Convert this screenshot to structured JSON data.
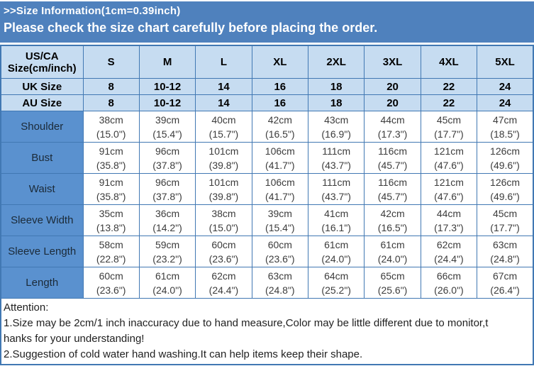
{
  "topbar": {
    "size_info_title": ">>Size Information(1cm=0.39inch)",
    "banner_text": "Please check the size chart carefully before placing the order."
  },
  "table": {
    "corner_header_line1": "US/CA",
    "corner_header_line2": "Size(cm/inch)",
    "size_headers": [
      "S",
      "M",
      "L",
      "XL",
      "2XL",
      "3XL",
      "4XL",
      "5XL"
    ],
    "size_rows": [
      {
        "label": "UK Size",
        "values": [
          "8",
          "10-12",
          "14",
          "16",
          "18",
          "20",
          "22",
          "24"
        ]
      },
      {
        "label": "AU Size",
        "values": [
          "8",
          "10-12",
          "14",
          "16",
          "18",
          "20",
          "22",
          "24"
        ]
      }
    ],
    "measure_rows": [
      {
        "label": "Shoulder",
        "cm": [
          "38cm",
          "39cm",
          "40cm",
          "42cm",
          "43cm",
          "44cm",
          "45cm",
          "47cm"
        ],
        "inch": [
          "(15.0\")",
          "(15.4\")",
          "(15.7\")",
          "(16.5\")",
          "(16.9\")",
          "(17.3\")",
          "(17.7\")",
          "(18.5\")"
        ]
      },
      {
        "label": "Bust",
        "cm": [
          "91cm",
          "96cm",
          "101cm",
          "106cm",
          "111cm",
          "116cm",
          "121cm",
          "126cm"
        ],
        "inch": [
          "(35.8\")",
          "(37.8\")",
          "(39.8\")",
          "(41.7\")",
          "(43.7\")",
          "(45.7\")",
          "(47.6\")",
          "(49.6\")"
        ]
      },
      {
        "label": "Waist",
        "cm": [
          "91cm",
          "96cm",
          "101cm",
          "106cm",
          "111cm",
          "116cm",
          "121cm",
          "126cm"
        ],
        "inch": [
          "(35.8\")",
          "(37.8\")",
          "(39.8\")",
          "(41.7\")",
          "(43.7\")",
          "(45.7\")",
          "(47.6\")",
          "(49.6\")"
        ]
      },
      {
        "label": "Sleeve Width",
        "cm": [
          "35cm",
          "36cm",
          "38cm",
          "39cm",
          "41cm",
          "42cm",
          "44cm",
          "45cm"
        ],
        "inch": [
          "(13.8\")",
          "(14.2\")",
          "(15.0\")",
          "(15.4\")",
          "(16.1\")",
          "(16.5\")",
          "(17.3\")",
          "(17.7\")"
        ]
      },
      {
        "label": "Sleeve Length",
        "cm": [
          "58cm",
          "59cm",
          "60cm",
          "60cm",
          "61cm",
          "61cm",
          "62cm",
          "63cm"
        ],
        "inch": [
          "(22.8\")",
          "(23.2\")",
          "(23.6\")",
          "(23.6\")",
          "(24.0\")",
          "(24.0\")",
          "(24.4\")",
          "(24.8\")"
        ]
      },
      {
        "label": "Length",
        "cm": [
          "60cm",
          "61cm",
          "62cm",
          "63cm",
          "64cm",
          "65cm",
          "66cm",
          "67cm"
        ],
        "inch": [
          "(23.6\")",
          "(24.0\")",
          "(24.4\")",
          "(24.8\")",
          "(25.2\")",
          "(25.6\")",
          "(26.0\")",
          "(26.4\")"
        ]
      }
    ]
  },
  "attention": {
    "title": "Attention:",
    "lines": [
      "1.Size may be 2cm/1 inch inaccuracy due to hand measure,Color may be little different due to monitor,t",
      "hanks for your understanding!",
      "2.Suggestion of cold water hand washing.It can help items keep their shape."
    ]
  },
  "colors": {
    "banner_blue": "#4f81bd",
    "header_cell_blue": "#c6dcf1",
    "label_cell_blue": "#5a91cf",
    "border_blue": "#4178b3"
  }
}
